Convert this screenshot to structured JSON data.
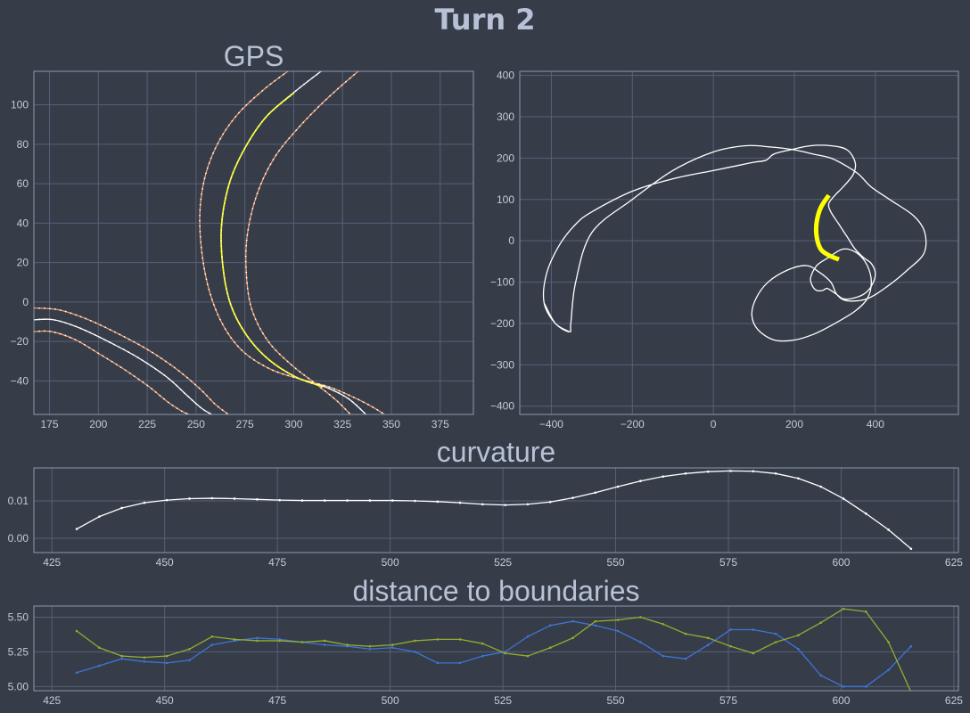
{
  "page": {
    "title": "Turn 2"
  },
  "colors": {
    "background": "#363d49",
    "text": "#b8c2d6",
    "grid": "#56607a",
    "track": "#ffffff",
    "boundary": "#f29b6b",
    "highlight": "#ffff00",
    "series_a": "#3f74d6",
    "series_b": "#93ad2e"
  },
  "chart_data": [
    {
      "id": "gps",
      "type": "line",
      "title": "GPS",
      "xlim": [
        167,
        392
      ],
      "ylim": [
        -57,
        117
      ],
      "xticks": [
        175,
        200,
        225,
        250,
        275,
        300,
        325,
        350,
        375
      ],
      "yticks": [
        -40,
        -20,
        0,
        20,
        40,
        60,
        80,
        100
      ],
      "series": [
        {
          "name": "turn1_left",
          "color": "#f29b6b",
          "x": [
            167,
            180,
            195,
            210,
            225,
            240,
            252,
            260,
            268
          ],
          "y": [
            -3,
            -4,
            -9,
            -16,
            -24,
            -34,
            -44,
            -52,
            -58
          ]
        },
        {
          "name": "turn1_center",
          "color": "#ffffff",
          "x": [
            167,
            177,
            190,
            205,
            220,
            235,
            245,
            253,
            260
          ],
          "y": [
            -9,
            -9,
            -13,
            -20,
            -28,
            -38,
            -47,
            -54,
            -58
          ]
        },
        {
          "name": "turn1_right",
          "color": "#f29b6b",
          "x": [
            167,
            176,
            188,
            200,
            213,
            226,
            236,
            244,
            250
          ],
          "y": [
            -15,
            -15,
            -19,
            -26,
            -34,
            -43,
            -51,
            -56,
            -58
          ]
        },
        {
          "name": "turn2_left",
          "color": "#f29b6b",
          "x": [
            297,
            285,
            272,
            262,
            255,
            252,
            253,
            257,
            264,
            274,
            288,
            303,
            318,
            330,
            340,
            348
          ],
          "y": [
            117,
            108,
            96,
            82,
            65,
            46,
            25,
            5,
            -12,
            -25,
            -34,
            -39,
            -43,
            -48,
            -53,
            -58
          ]
        },
        {
          "name": "turn2_center",
          "color": "#ffffff",
          "x": [
            314,
            301,
            286,
            275,
            267,
            263,
            264,
            268,
            276,
            287,
            301,
            316,
            328,
            338
          ],
          "y": [
            117,
            107,
            94,
            78,
            60,
            38,
            16,
            -2,
            -17,
            -29,
            -38,
            -43,
            -49,
            -58
          ]
        },
        {
          "name": "turn2_right",
          "color": "#f29b6b",
          "x": [
            333,
            318,
            303,
            290,
            281,
            276,
            276,
            279,
            287,
            299,
            312,
            322,
            330
          ],
          "y": [
            117,
            104,
            89,
            73,
            54,
            32,
            11,
            -5,
            -20,
            -32,
            -42,
            -50,
            -58
          ]
        },
        {
          "name": "turn2_highlight",
          "color": "#ffff00",
          "x": [
            300,
            286,
            275,
            267,
            263,
            264,
            268,
            276,
            287,
            301,
            315
          ],
          "y": [
            106,
            94,
            78,
            60,
            38,
            16,
            -2,
            -17,
            -29,
            -38,
            -43
          ]
        }
      ]
    },
    {
      "id": "track",
      "type": "line",
      "title": "",
      "xlim": [
        -478,
        605
      ],
      "ylim": [
        -420,
        410
      ],
      "xticks": [
        -400,
        -200,
        0,
        200,
        400
      ],
      "yticks": [
        -400,
        -300,
        -200,
        -100,
        0,
        100,
        200,
        300,
        400
      ],
      "series": [
        {
          "name": "track_outline",
          "color": "#ffffff",
          "closed": true,
          "x": [
            -355,
            -390,
            -418,
            -412,
            -380,
            -340,
            -300,
            -200,
            -100,
            0,
            50,
            100,
            130,
            150,
            190,
            240,
            290,
            330,
            350,
            345,
            320,
            300,
            285,
            290,
            310,
            330,
            350,
            370,
            390,
            400,
            390,
            370,
            340,
            320,
            305,
            290,
            280,
            270,
            255,
            245,
            240,
            255,
            285,
            320,
            355,
            380,
            390,
            380,
            350,
            300,
            250,
            200,
            150,
            110,
            95,
            105,
            135,
            185,
            230,
            260,
            290,
            305,
            330,
            380,
            430,
            480,
            520,
            522,
            495,
            435,
            390,
            360,
            330,
            290,
            245,
            200,
            140,
            80,
            0,
            -100,
            -200,
            -300,
            -340,
            -352
          ],
          "y": [
            -220,
            -200,
            -150,
            -80,
            -10,
            40,
            70,
            120,
            150,
            170,
            180,
            190,
            195,
            210,
            220,
            230,
            230,
            220,
            190,
            160,
            130,
            110,
            90,
            70,
            40,
            10,
            -20,
            -40,
            -55,
            -80,
            -110,
            -130,
            -140,
            -140,
            -130,
            -120,
            -115,
            -120,
            -120,
            -110,
            -90,
            -60,
            -40,
            -20,
            -30,
            -60,
            -100,
            -140,
            -170,
            -200,
            -225,
            -240,
            -240,
            -215,
            -180,
            -140,
            -100,
            -70,
            -60,
            -75,
            -100,
            -130,
            -145,
            -140,
            -110,
            -70,
            -30,
            20,
            60,
            100,
            130,
            160,
            180,
            200,
            210,
            220,
            227,
            230,
            215,
            170,
            100,
            20,
            -100,
            -200
          ]
        },
        {
          "name": "turn2_highlight",
          "color": "#ffff00",
          "x": [
            285,
            265,
            255,
            255,
            265,
            285,
            310
          ],
          "y": [
            110,
            80,
            45,
            10,
            -20,
            -35,
            -45
          ]
        }
      ]
    },
    {
      "id": "curvature",
      "type": "line",
      "title": "curvature",
      "xlim": [
        421,
        626
      ],
      "ylim": [
        -0.0038,
        0.0188
      ],
      "xticks": [
        425,
        450,
        475,
        500,
        525,
        550,
        575,
        600,
        625
      ],
      "yticks": [
        0.0,
        0.01
      ],
      "ytick_labels": [
        "0.00",
        "0.01"
      ],
      "series": [
        {
          "name": "curvature",
          "color": "#ffffff",
          "x": [
            430.5,
            435.5,
            440.5,
            445.5,
            450.5,
            455.5,
            460.5,
            465.5,
            470.5,
            475.5,
            480.5,
            485.5,
            490.5,
            495.5,
            500.5,
            505.5,
            510.5,
            515.5,
            520.5,
            525.5,
            530.5,
            535.5,
            540.5,
            545.5,
            550.5,
            555.5,
            560.5,
            565.5,
            570.5,
            575.5,
            580.5,
            585.5,
            590.5,
            595.5,
            600.5,
            605.5,
            610.5,
            615.5
          ],
          "y": [
            0.0025,
            0.0058,
            0.0081,
            0.0095,
            0.0102,
            0.0106,
            0.0107,
            0.0106,
            0.0104,
            0.0102,
            0.0101,
            0.0101,
            0.0101,
            0.0101,
            0.0101,
            0.01,
            0.0098,
            0.0095,
            0.0091,
            0.0089,
            0.0091,
            0.0097,
            0.0108,
            0.0122,
            0.0138,
            0.0153,
            0.0165,
            0.0173,
            0.0178,
            0.018,
            0.0179,
            0.0173,
            0.016,
            0.0138,
            0.0106,
            0.0066,
            0.0023,
            -0.0028
          ]
        }
      ]
    },
    {
      "id": "boundaries",
      "type": "line",
      "title": "distance to boundaries",
      "xlim": [
        421,
        626
      ],
      "ylim": [
        4.97,
        5.58
      ],
      "xticks": [
        425,
        450,
        475,
        500,
        525,
        550,
        575,
        600,
        625
      ],
      "yticks": [
        5.0,
        5.25,
        5.5
      ],
      "ytick_labels": [
        "5.00",
        "5.25",
        "5.50"
      ],
      "series": [
        {
          "name": "left_distance",
          "color": "#3f74d6",
          "x": [
            430.5,
            435.5,
            440.5,
            445.5,
            450.5,
            455.5,
            460.5,
            465.5,
            470.5,
            475.5,
            480.5,
            485.5,
            490.5,
            495.5,
            500.5,
            505.5,
            510.5,
            515.5,
            520.5,
            525.5,
            530.5,
            535.5,
            540.5,
            545.5,
            550.5,
            555.5,
            560.5,
            565.5,
            570.5,
            575.5,
            580.5,
            585.5,
            590.5,
            595.5,
            600.5,
            605.5,
            610.5,
            615.5
          ],
          "y": [
            5.1,
            5.15,
            5.2,
            5.18,
            5.17,
            5.19,
            5.3,
            5.33,
            5.35,
            5.34,
            5.32,
            5.3,
            5.29,
            5.27,
            5.28,
            5.25,
            5.17,
            5.17,
            5.22,
            5.25,
            5.36,
            5.44,
            5.47,
            5.44,
            5.4,
            5.32,
            5.22,
            5.2,
            5.3,
            5.41,
            5.41,
            5.38,
            5.27,
            5.08,
            5.0,
            5.0,
            5.12,
            5.29
          ]
        },
        {
          "name": "right_distance",
          "color": "#93ad2e",
          "x": [
            430.5,
            435.5,
            440.5,
            445.5,
            450.5,
            455.5,
            460.5,
            465.5,
            470.5,
            475.5,
            480.5,
            485.5,
            490.5,
            495.5,
            500.5,
            505.5,
            510.5,
            515.5,
            520.5,
            525.5,
            530.5,
            535.5,
            540.5,
            545.5,
            550.5,
            555.5,
            560.5,
            565.5,
            570.5,
            575.5,
            580.5,
            585.5,
            590.5,
            595.5,
            600.5,
            605.5,
            610.5,
            615.5
          ],
          "y": [
            5.4,
            5.28,
            5.22,
            5.21,
            5.22,
            5.27,
            5.36,
            5.34,
            5.33,
            5.33,
            5.32,
            5.33,
            5.3,
            5.29,
            5.3,
            5.33,
            5.34,
            5.34,
            5.31,
            5.24,
            5.22,
            5.28,
            5.35,
            5.47,
            5.48,
            5.5,
            5.45,
            5.38,
            5.35,
            5.29,
            5.24,
            5.32,
            5.37,
            5.46,
            5.56,
            5.54,
            5.32,
            4.96
          ]
        }
      ]
    }
  ]
}
